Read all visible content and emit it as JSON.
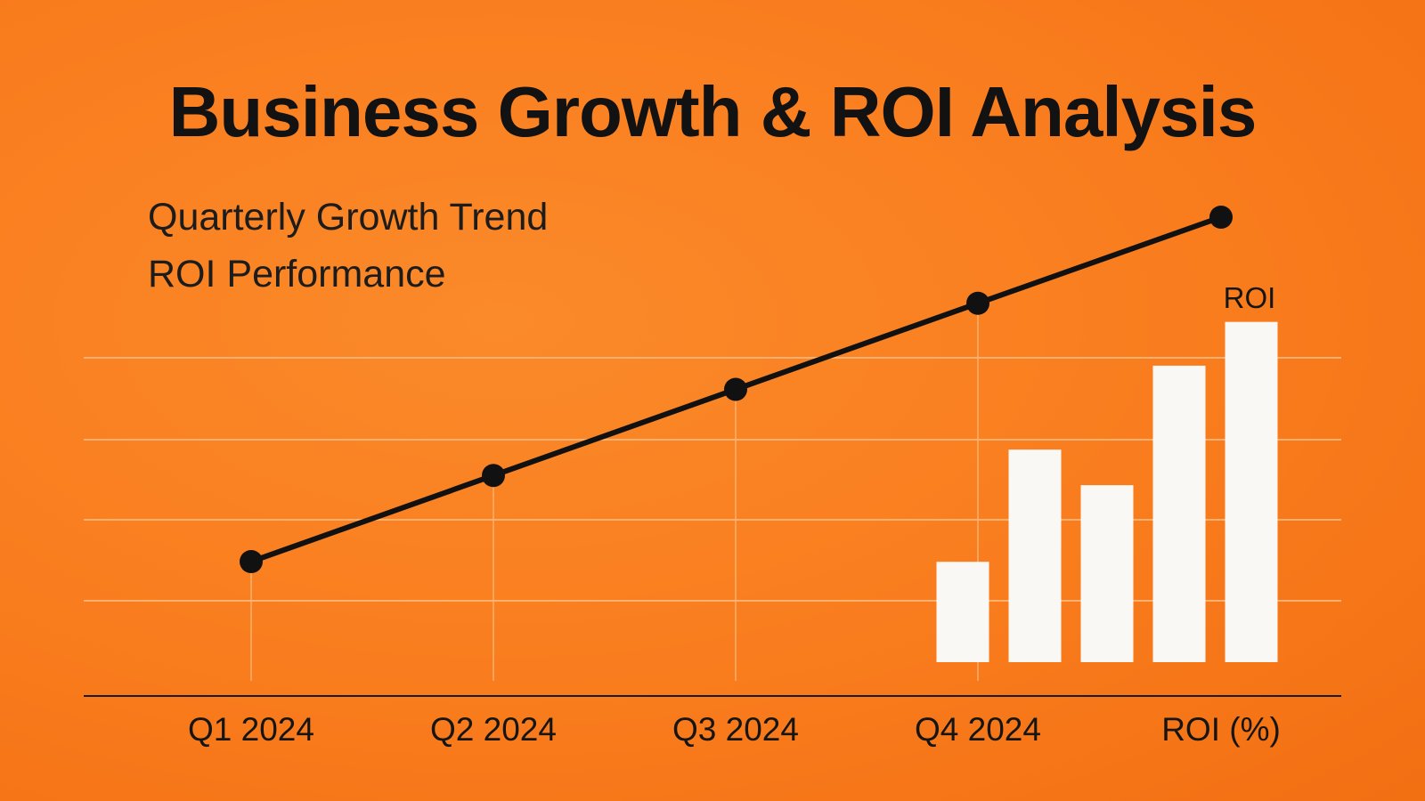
{
  "header": {
    "title": "Business Growth & ROI Analysis",
    "subtitle_1": "Quarterly Growth Trend",
    "subtitle_2": "ROI Performance"
  },
  "colors": {
    "background": "#f97c1d",
    "line": "#111111",
    "bars": "#faf8f4",
    "gridlines": "#fbb070",
    "text": "#121212"
  },
  "chart_data": [
    {
      "type": "line",
      "title": "Quarterly Growth Trend",
      "categories": [
        "Q1 2024",
        "Q2 2024",
        "Q3 2024",
        "Q4 2024",
        "ROI (%)"
      ],
      "values": [
        1.6,
        2.6,
        3.6,
        4.6,
        5.6
      ],
      "ylim": [
        0,
        6
      ],
      "grid": true,
      "markers": true
    },
    {
      "type": "bar",
      "title": "ROI Performance",
      "label": "ROI",
      "values": [
        110,
        233,
        194,
        325,
        373
      ],
      "ylim": [
        0,
        400
      ]
    }
  ]
}
